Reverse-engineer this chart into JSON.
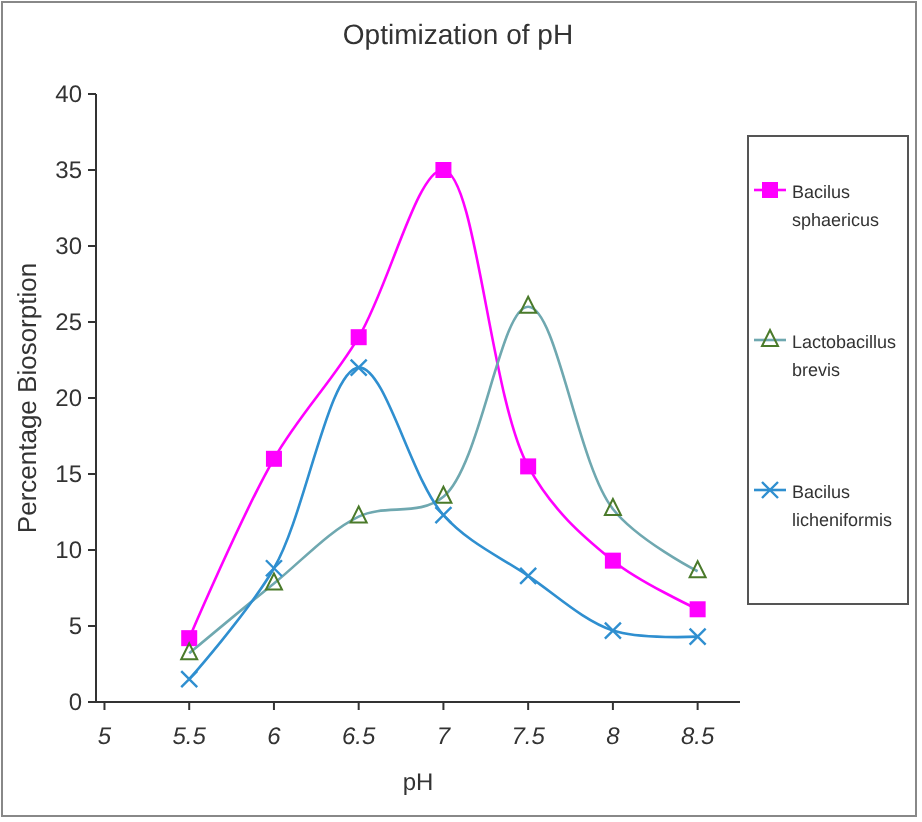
{
  "chart_data": {
    "type": "line",
    "title": "Optimization of pH",
    "xlabel": "pH",
    "ylabel": "Percentage Biosorption",
    "x": [
      5.5,
      6,
      6.5,
      7,
      7.5,
      8,
      8.5
    ],
    "xlim": [
      4.95,
      8.75
    ],
    "xticks": [
      5,
      5.5,
      6,
      6.5,
      7,
      7.5,
      8,
      8.5
    ],
    "ylim": [
      0,
      40
    ],
    "yticks": [
      0,
      5,
      10,
      15,
      20,
      25,
      30,
      35,
      40
    ],
    "legend": "right",
    "grid": false,
    "series": [
      {
        "name": "Bacilus sphaericus",
        "color": "#ff00ff",
        "marker": "square",
        "values": [
          4.2,
          16,
          24,
          35,
          15.5,
          9.3,
          6.1
        ]
      },
      {
        "name": "Lactobacillus brevis",
        "color": "#6fa8b0",
        "marker": "triangle",
        "values": [
          3.2,
          7.8,
          12.2,
          13.5,
          26,
          12.7,
          8.6
        ]
      },
      {
        "name": "Bacilus licheniformis",
        "color": "#2f8fd0",
        "marker": "cross",
        "values": [
          1.5,
          8.8,
          22,
          12.3,
          8.3,
          4.7,
          4.3
        ]
      }
    ]
  }
}
